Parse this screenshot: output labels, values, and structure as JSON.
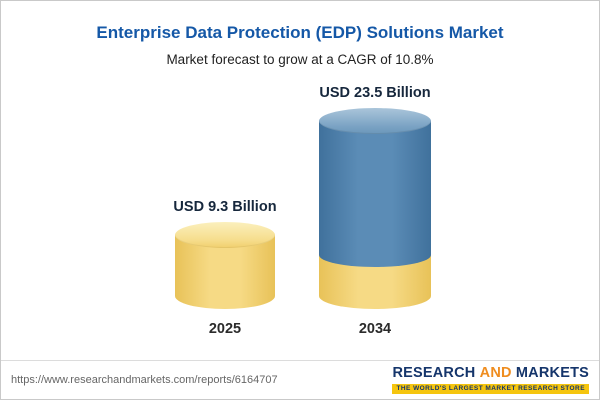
{
  "header": {
    "title": "Enterprise Data Protection (EDP) Solutions Market",
    "subtitle": "Market forecast to grow at a CAGR of 10.8%"
  },
  "chart_data": {
    "type": "bar",
    "title": "Enterprise Data Protection (EDP) Solutions Market",
    "subtitle": "Market forecast to grow at a CAGR of 10.8%",
    "cagr_pct": 10.8,
    "categories": [
      "2025",
      "2034"
    ],
    "values": [
      9.3,
      23.5
    ],
    "value_labels": [
      "USD 9.3 Billion",
      "USD 23.5 Billion"
    ],
    "unit": "USD Billion",
    "ylim": [
      0,
      23.5
    ],
    "grid": false,
    "legend": false,
    "bar_style": "3d-cylinder",
    "colors": {
      "bar_2025": "#f6da85",
      "bar_2034_top_segment": "#5b8cb6",
      "bar_2034_base_segment": "#f6da85"
    }
  },
  "footer": {
    "url": "https://www.researchandmarkets.com/reports/6164707",
    "logo": {
      "word1": "RESEARCH",
      "word2": "AND",
      "word3": "MARKETS",
      "tagline": "THE WORLD'S LARGEST MARKET RESEARCH STORE"
    }
  },
  "colors": {
    "title_blue": "#1558a7",
    "accent_yellow": "#f6da85",
    "accent_blue": "#5b8cb6",
    "logo_navy": "#15356b",
    "logo_orange": "#ef8d1f",
    "tagline_bg": "#f5c50e"
  }
}
